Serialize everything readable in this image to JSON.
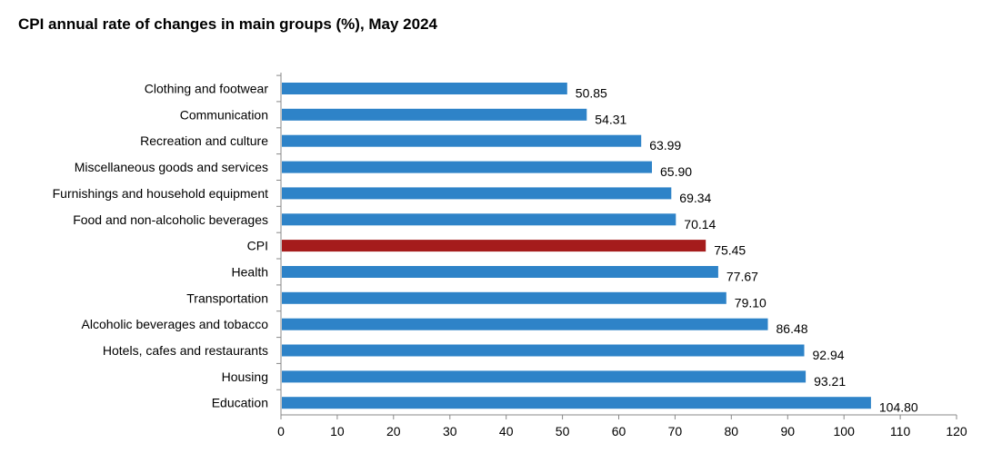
{
  "chart_data": {
    "type": "bar",
    "orientation": "horizontal",
    "title": "CPI annual rate of changes in main groups (%), May 2024",
    "xlabel": "",
    "ylabel": "",
    "xlim": [
      0,
      120
    ],
    "ticks": [
      "0",
      "10",
      "20",
      "30",
      "40",
      "50",
      "60",
      "70",
      "80",
      "90",
      "100",
      "110",
      "120"
    ],
    "categories": [
      "Clothing and footwear",
      "Communication",
      "Recreation and culture",
      "Miscellaneous goods and services",
      "Furnishings and household equipment",
      "Food and non-alcoholic beverages",
      "CPI",
      "Health",
      "Transportation",
      "Alcoholic beverages and tobacco",
      "Hotels, cafes and restaurants",
      "Housing",
      "Education"
    ],
    "values": [
      50.85,
      54.31,
      63.99,
      65.9,
      69.34,
      70.14,
      75.45,
      77.67,
      79.1,
      86.48,
      92.94,
      93.21,
      104.8
    ],
    "value_labels": [
      "50.85",
      "54.31",
      "63.99",
      "65.90",
      "69.34",
      "70.14",
      "75.45",
      "77.67",
      "79.10",
      "86.48",
      "92.94",
      "93.21",
      "104.80"
    ],
    "colors": {
      "default": "#2E83C8",
      "highlight": "#A51C1C",
      "highlight_category": "CPI",
      "axis": "#888888"
    },
    "grid": false,
    "legend": "none"
  }
}
